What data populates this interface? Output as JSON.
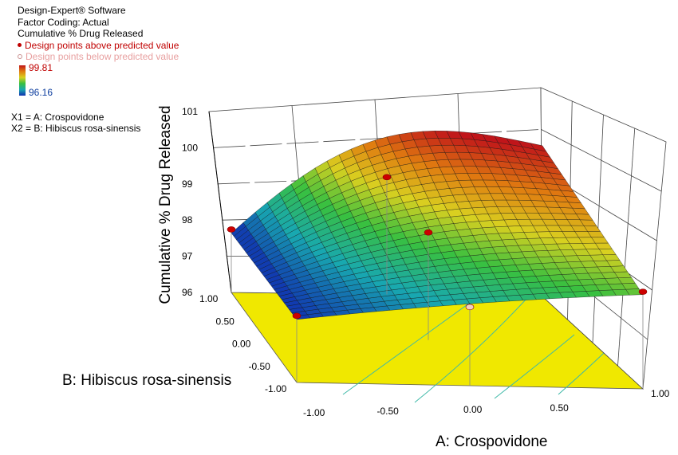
{
  "header": {
    "software": "Design-Expert® Software",
    "coding": "Factor Coding: Actual",
    "response": "Cumulative % Drug Released",
    "above_legend": "Design points above predicted value",
    "below_legend": "Design points below predicted value"
  },
  "colorbar": {
    "max": "99.81",
    "min": "96.16"
  },
  "factors": {
    "x1": "X1 = A: Crospovidone",
    "x2": "X2 = B: Hibiscus rosa-sinensis"
  },
  "colors": {
    "above": "#cc0000",
    "below": "#f0d0c0",
    "floor": "#f0e800"
  },
  "chart_data": {
    "type": "surface3d",
    "zlabel": "Cumulative % Drug Released",
    "xlabel": "A: Crospovidone",
    "ylabel": "B: Hibiscus rosa-sinensis",
    "z_ticks": [
      "101",
      "100",
      "99",
      "98",
      "97",
      "96"
    ],
    "x_ticks": [
      "-1.00",
      "-0.50",
      "0.00",
      "0.50",
      "1.00"
    ],
    "y_ticks": [
      "1.00",
      "0.50",
      "0.00",
      "-0.50",
      "-1.00"
    ],
    "zlim": [
      96,
      101
    ],
    "xlim": [
      -1,
      1
    ],
    "ylim": [
      -1,
      1
    ],
    "grid": true,
    "surface_corners": [
      {
        "A": -1,
        "B": 1,
        "Z": 96.1
      },
      {
        "A": 1,
        "B": 1,
        "Z": 99.8
      },
      {
        "A": 1,
        "B": -1,
        "Z": 97.8
      },
      {
        "A": -1,
        "B": -1,
        "Z": 96.2
      }
    ],
    "design_points": [
      {
        "A": -1,
        "B": 1,
        "Z": 96.2,
        "position": "above"
      },
      {
        "A": 0,
        "B": 1,
        "Z": 98.1,
        "position": "above"
      },
      {
        "A": 0,
        "B": 0,
        "Z": 97.8,
        "position": "above"
      },
      {
        "A": 1,
        "B": -1,
        "Z": 97.9,
        "position": "above"
      },
      {
        "A": -1,
        "B": -1,
        "Z": 96.3,
        "position": "above"
      },
      {
        "A": 0,
        "B": -1,
        "Z": 96.9,
        "position": "below"
      }
    ]
  }
}
